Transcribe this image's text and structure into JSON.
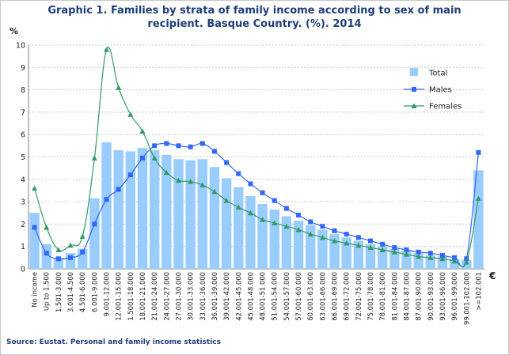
{
  "title_line1": "Graphic 1. Families by strata of family income according to sex of main",
  "title_line2": "recipient. Basque Country. (%). 2014",
  "y_unit": "%",
  "x_unit": "€",
  "source": "Source: Eustat. Personal and family income statistics",
  "chart_data": {
    "type": "bar",
    "ylim": [
      0,
      10
    ],
    "yticks": [
      0,
      1,
      2,
      3,
      4,
      5,
      6,
      7,
      8,
      9,
      10
    ],
    "grid": true,
    "legend_position": "top-right",
    "categories": [
      "No income",
      "Up to 1.500",
      "1.501-3.000",
      "3.001-4.500",
      "4.501-6.000",
      "6.001-9.000",
      "9.001-12.000",
      "12.001-15.000",
      "1.5001-18.000",
      "18.001-21.000",
      "21.001-24.000",
      "24.001-27.000",
      "27.001-30.000",
      "30.001-33.000",
      "33.001-36.000",
      "36.001-39.000",
      "39.001-42.000",
      "42.001-45.000",
      "45.001-48.000",
      "48.001-51.000",
      "51.001-54.000",
      "54.001-57.000",
      "57.001-60.000",
      "60.001-63.000",
      "63.001-66.000",
      "66.001-69.000",
      "69.001-72.000",
      "72.001-75.000",
      "75.001-78.000",
      "78.001-81.000",
      "81.001-84.000",
      "84.001-87.000",
      "87.001-90.000",
      "90.001-93.000",
      "93.001-96.000",
      "96.001-99.000",
      "99.001-102.000",
      ">=102.001"
    ],
    "series": [
      {
        "name": "Total",
        "type": "bar",
        "color": "#99ccff",
        "values": [
          2.5,
          1.1,
          0.5,
          0.7,
          0.9,
          3.15,
          5.65,
          5.3,
          5.25,
          5.4,
          5.3,
          5.1,
          4.9,
          4.85,
          4.9,
          4.55,
          4.05,
          3.65,
          3.25,
          2.9,
          2.65,
          2.35,
          2.15,
          1.95,
          1.75,
          1.55,
          1.4,
          1.25,
          1.1,
          1.0,
          0.9,
          0.8,
          0.7,
          0.6,
          0.55,
          0.45,
          0.4,
          4.4
        ]
      },
      {
        "name": "Males",
        "type": "line",
        "color": "#3366ff",
        "marker": "square",
        "values": [
          1.85,
          0.7,
          0.45,
          0.5,
          0.75,
          2.0,
          3.1,
          3.55,
          4.2,
          4.95,
          5.5,
          5.6,
          5.5,
          5.45,
          5.6,
          5.25,
          4.75,
          4.25,
          3.8,
          3.4,
          3.05,
          2.7,
          2.4,
          2.1,
          1.9,
          1.7,
          1.55,
          1.4,
          1.25,
          1.1,
          0.95,
          0.85,
          0.75,
          0.7,
          0.6,
          0.5,
          0.45,
          5.2
        ]
      },
      {
        "name": "Females",
        "type": "line",
        "color": "#339966",
        "marker": "triangle",
        "values": [
          3.6,
          1.85,
          0.85,
          1.05,
          1.45,
          4.95,
          9.8,
          8.1,
          6.9,
          6.15,
          4.95,
          4.3,
          3.95,
          3.9,
          3.75,
          3.45,
          3.05,
          2.75,
          2.5,
          2.2,
          2.05,
          1.9,
          1.75,
          1.55,
          1.4,
          1.25,
          1.15,
          1.05,
          0.95,
          0.85,
          0.75,
          0.65,
          0.55,
          0.5,
          0.45,
          0.35,
          0.3,
          3.15
        ]
      }
    ]
  }
}
